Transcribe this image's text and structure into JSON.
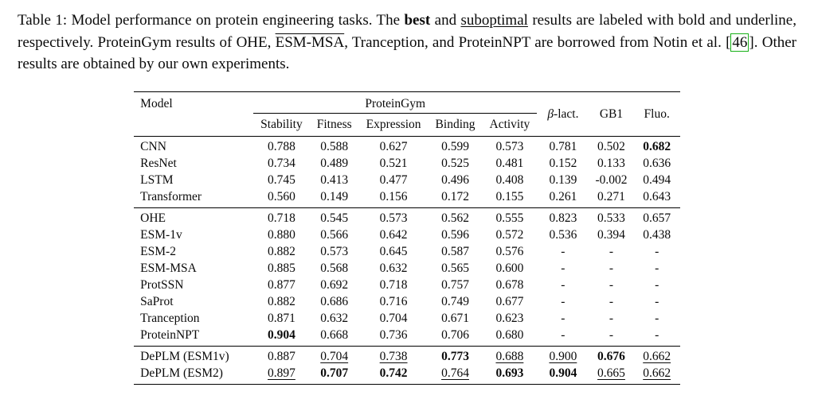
{
  "caption": {
    "part1": "Table 1: Model performance on protein engineering tasks. The ",
    "best": "best",
    "part2": " and ",
    "suboptimal": "suboptimal",
    "part3": " results are labeled with bold and underline, respectively. ProteinGym results of OHE, ",
    "esm_msa": "ESM-MSA",
    "part4": ", Tranception, and ProteinNPT are borrowed from Notin et al. ",
    "cite_open": "[",
    "cite_num": "46",
    "cite_close": "]",
    "part5": ". Other results are obtained by our own experiments."
  },
  "chart_data": {
    "type": "table",
    "title": "Table 1: Model performance on protein engineering tasks",
    "header": {
      "model": "Model",
      "group": "ProteinGym",
      "sub": [
        "Stability",
        "Fitness",
        "Expression",
        "Binding",
        "Activity"
      ],
      "beta": "β",
      "beta_rest": "-lact.",
      "gb1": "GB1",
      "fluo": "Fluo."
    },
    "columns": [
      "Model",
      "Stability",
      "Fitness",
      "Expression",
      "Binding",
      "Activity",
      "β-lact.",
      "GB1",
      "Fluo."
    ],
    "groups": [
      {
        "rows": [
          {
            "model": "CNN",
            "values": [
              "0.788",
              "0.588",
              "0.627",
              "0.599",
              "0.573",
              "0.781",
              "0.502",
              "0.682"
            ],
            "styles": [
              "",
              "",
              "",
              "",
              "",
              "",
              "",
              "b"
            ]
          },
          {
            "model": "ResNet",
            "values": [
              "0.734",
              "0.489",
              "0.521",
              "0.525",
              "0.481",
              "0.152",
              "0.133",
              "0.636"
            ],
            "styles": [
              "",
              "",
              "",
              "",
              "",
              "",
              "",
              ""
            ]
          },
          {
            "model": "LSTM",
            "values": [
              "0.745",
              "0.413",
              "0.477",
              "0.496",
              "0.408",
              "0.139",
              "-0.002",
              "0.494"
            ],
            "styles": [
              "",
              "",
              "",
              "",
              "",
              "",
              "",
              ""
            ]
          },
          {
            "model": "Transformer",
            "values": [
              "0.560",
              "0.149",
              "0.156",
              "0.172",
              "0.155",
              "0.261",
              "0.271",
              "0.643"
            ],
            "styles": [
              "",
              "",
              "",
              "",
              "",
              "",
              "",
              ""
            ]
          }
        ]
      },
      {
        "rows": [
          {
            "model": "OHE",
            "values": [
              "0.718",
              "0.545",
              "0.573",
              "0.562",
              "0.555",
              "0.823",
              "0.533",
              "0.657"
            ],
            "styles": [
              "",
              "",
              "",
              "",
              "",
              "",
              "",
              ""
            ]
          },
          {
            "model": "ESM-1v",
            "values": [
              "0.880",
              "0.566",
              "0.642",
              "0.596",
              "0.572",
              "0.536",
              "0.394",
              "0.438"
            ],
            "styles": [
              "",
              "",
              "",
              "",
              "",
              "",
              "",
              ""
            ]
          },
          {
            "model": "ESM-2",
            "values": [
              "0.882",
              "0.573",
              "0.645",
              "0.587",
              "0.576",
              "-",
              "-",
              "-"
            ],
            "styles": [
              "",
              "",
              "",
              "",
              "",
              "",
              "",
              ""
            ]
          },
          {
            "model": "ESM-MSA",
            "values": [
              "0.885",
              "0.568",
              "0.632",
              "0.565",
              "0.600",
              "-",
              "-",
              "-"
            ],
            "styles": [
              "",
              "",
              "",
              "",
              "",
              "",
              "",
              ""
            ]
          },
          {
            "model": "ProtSSN",
            "values": [
              "0.877",
              "0.692",
              "0.718",
              "0.757",
              "0.678",
              "-",
              "-",
              "-"
            ],
            "styles": [
              "",
              "",
              "",
              "",
              "",
              "",
              "",
              ""
            ]
          },
          {
            "model": "SaProt",
            "values": [
              "0.882",
              "0.686",
              "0.716",
              "0.749",
              "0.677",
              "-",
              "-",
              "-"
            ],
            "styles": [
              "",
              "",
              "",
              "",
              "",
              "",
              "",
              ""
            ]
          },
          {
            "model": "Tranception",
            "values": [
              "0.871",
              "0.632",
              "0.704",
              "0.671",
              "0.623",
              "-",
              "-",
              "-"
            ],
            "styles": [
              "",
              "",
              "",
              "",
              "",
              "",
              "",
              ""
            ]
          },
          {
            "model": "ProteinNPT",
            "values": [
              "0.904",
              "0.668",
              "0.736",
              "0.706",
              "0.680",
              "-",
              "-",
              "-"
            ],
            "styles": [
              "b",
              "",
              "",
              "",
              "",
              "",
              "",
              ""
            ]
          }
        ]
      },
      {
        "rows": [
          {
            "model": "DePLM (ESM1v)",
            "values": [
              "0.887",
              "0.704",
              "0.738",
              "0.773",
              "0.688",
              "0.900",
              "0.676",
              "0.662"
            ],
            "styles": [
              "",
              "u",
              "u",
              "b",
              "u",
              "u",
              "b",
              "u"
            ]
          },
          {
            "model": "DePLM (ESM2)",
            "values": [
              "0.897",
              "0.707",
              "0.742",
              "0.764",
              "0.693",
              "0.904",
              "0.665",
              "0.662"
            ],
            "styles": [
              "u",
              "b",
              "b",
              "u",
              "b",
              "b",
              "u",
              "u"
            ]
          }
        ]
      }
    ]
  }
}
